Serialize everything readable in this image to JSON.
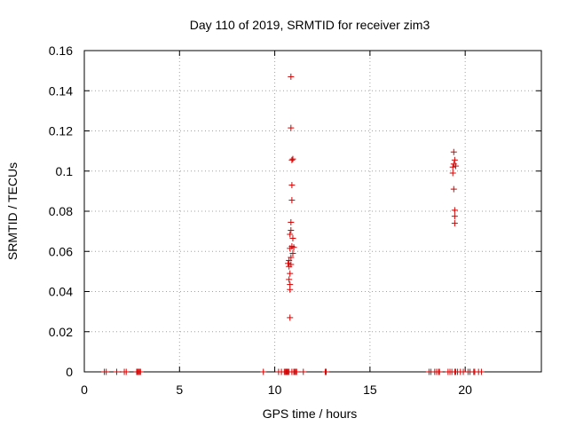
{
  "chart_data": {
    "type": "scatter",
    "title": "Day 110 of 2019, SRMTID for receiver zim3",
    "xlabel": "GPS time / hours",
    "ylabel": "SRMTID / TECUs",
    "xlim": [
      0,
      24
    ],
    "ylim": [
      0,
      0.16
    ],
    "x_ticks": [
      0,
      5,
      10,
      15,
      20
    ],
    "y_ticks": [
      0,
      0.02,
      0.04,
      0.06,
      0.08,
      0.1,
      0.12,
      0.14,
      0.16
    ],
    "x_tick_labels": [
      "0",
      "5",
      "10",
      "15",
      "20"
    ],
    "y_tick_labels": [
      "0",
      "0.02",
      "0.04",
      "0.06",
      "0.08",
      "0.1",
      "0.12",
      "0.14",
      "0.16"
    ],
    "grid": true,
    "marker": "+",
    "marker_color": "#d40000",
    "series": [
      {
        "points": [
          [
            1.05,
            0
          ],
          [
            1.15,
            0
          ],
          [
            1.7,
            0
          ],
          [
            2.1,
            0
          ],
          [
            2.2,
            0
          ],
          [
            2.75,
            0
          ],
          [
            2.8,
            0
          ],
          [
            2.85,
            0
          ],
          [
            2.9,
            0
          ],
          [
            2.95,
            0
          ],
          [
            9.4,
            0
          ],
          [
            10.2,
            0
          ],
          [
            10.35,
            0
          ],
          [
            10.5,
            0
          ],
          [
            10.55,
            0
          ],
          [
            10.6,
            0
          ],
          [
            10.65,
            0
          ],
          [
            10.7,
            0
          ],
          [
            10.75,
            0
          ],
          [
            10.9,
            0
          ],
          [
            11.0,
            0
          ],
          [
            11.05,
            0
          ],
          [
            11.1,
            0
          ],
          [
            11.15,
            0
          ],
          [
            11.5,
            0
          ],
          [
            12.65,
            0
          ],
          [
            12.7,
            0
          ],
          [
            18.1,
            0
          ],
          [
            18.2,
            0
          ],
          [
            18.4,
            0
          ],
          [
            18.5,
            0
          ],
          [
            18.6,
            0
          ],
          [
            18.65,
            0
          ],
          [
            19.1,
            0
          ],
          [
            19.2,
            0
          ],
          [
            19.3,
            0
          ],
          [
            19.45,
            0
          ],
          [
            19.5,
            0
          ],
          [
            19.6,
            0
          ],
          [
            19.75,
            0
          ],
          [
            19.9,
            0
          ],
          [
            20.15,
            0
          ],
          [
            20.25,
            0
          ],
          [
            20.45,
            0
          ],
          [
            20.5,
            0
          ],
          [
            20.7,
            0
          ],
          [
            20.85,
            0
          ],
          [
            10.85,
            0.147
          ],
          [
            10.85,
            0.1215
          ],
          [
            10.9,
            0.1055
          ],
          [
            10.95,
            0.106
          ],
          [
            10.9,
            0.093
          ],
          [
            10.9,
            0.0855
          ],
          [
            10.85,
            0.0745
          ],
          [
            10.85,
            0.0705
          ],
          [
            10.8,
            0.0685
          ],
          [
            10.95,
            0.0665
          ],
          [
            10.9,
            0.0625
          ],
          [
            11.0,
            0.062
          ],
          [
            10.8,
            0.0615
          ],
          [
            10.95,
            0.059
          ],
          [
            10.85,
            0.057
          ],
          [
            10.75,
            0.0555
          ],
          [
            10.7,
            0.054
          ],
          [
            10.85,
            0.0535
          ],
          [
            10.75,
            0.0525
          ],
          [
            10.8,
            0.049
          ],
          [
            10.75,
            0.046
          ],
          [
            10.8,
            0.0435
          ],
          [
            10.8,
            0.041
          ],
          [
            10.8,
            0.027
          ],
          [
            19.4,
            0.1095
          ],
          [
            19.45,
            0.1055
          ],
          [
            19.4,
            0.1035
          ],
          [
            19.35,
            0.102
          ],
          [
            19.5,
            0.1025
          ],
          [
            19.35,
            0.099
          ],
          [
            19.4,
            0.091
          ],
          [
            19.45,
            0.0805
          ],
          [
            19.45,
            0.0775
          ],
          [
            19.45,
            0.074
          ]
        ]
      }
    ]
  }
}
